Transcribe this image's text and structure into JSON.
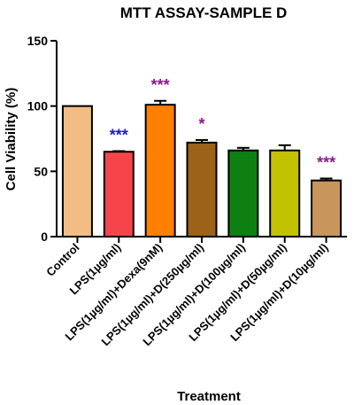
{
  "chart_data": {
    "type": "bar",
    "title": "MTT ASSAY-SAMPLE D",
    "xlabel": "Treatment",
    "ylabel": "Cell Viability (%)",
    "ylim": [
      0,
      150
    ],
    "yticks": [
      0,
      50,
      100,
      150
    ],
    "categories": [
      "Control",
      "LPS(1µg/ml)",
      "LPS(1µg/ml)+Dexa(9nM)",
      "LPS(1µg/ml)+D(250µg/ml)",
      "LPS(1µg/ml)+D(100µg/ml)",
      "LPS(1µg/ml)+D(50µg/ml)",
      "LPS(1µg/ml)+D(10µg/ml)"
    ],
    "values": [
      100,
      65,
      101,
      72,
      66,
      66,
      43
    ],
    "errors": [
      0,
      0.5,
      3,
      2,
      2,
      4,
      1.5
    ],
    "colors": [
      "#f2bd85",
      "#f5454b",
      "#ff8000",
      "#9c6217",
      "#0e8012",
      "#c2c200",
      "#c8955a"
    ],
    "annotations": [
      {
        "index": 1,
        "text": "***",
        "color": "#1a1ad6"
      },
      {
        "index": 2,
        "text": "***",
        "color": "#8a1a8a"
      },
      {
        "index": 3,
        "text": "*",
        "color": "#8a1a8a"
      },
      {
        "index": 6,
        "text": "***",
        "color": "#8a1a8a"
      }
    ],
    "grid": false,
    "legend": "none"
  }
}
